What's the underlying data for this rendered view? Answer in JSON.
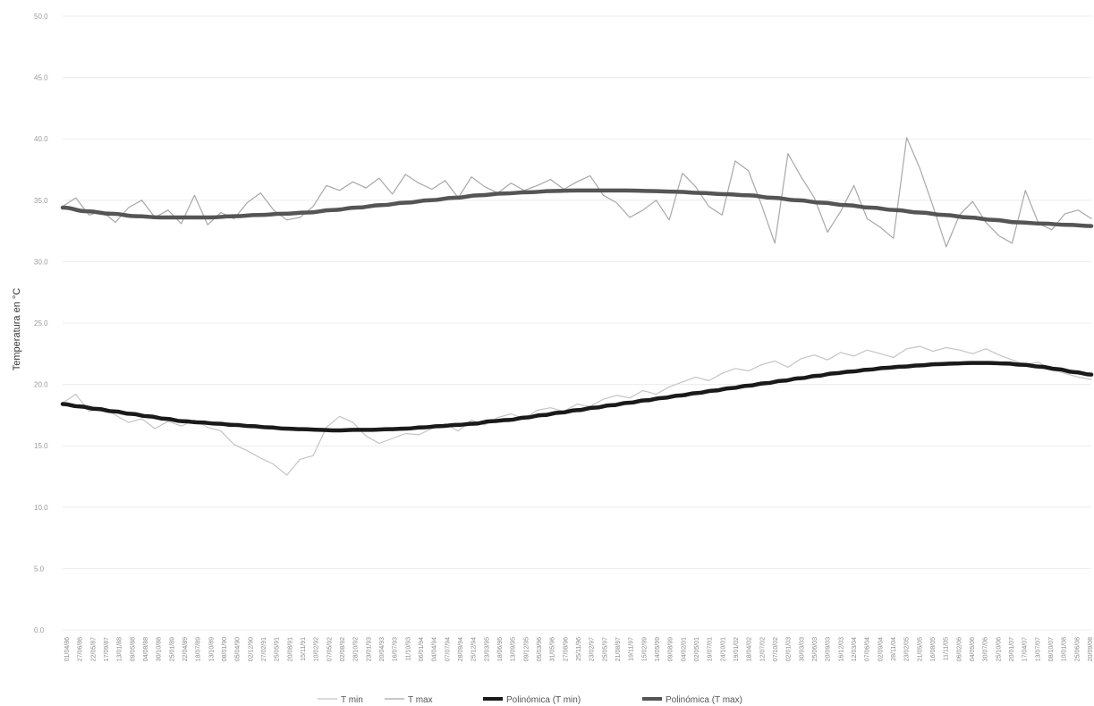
{
  "chart_data": {
    "type": "line",
    "title": "",
    "xlabel": "",
    "ylabel": "Temperatura en °C",
    "ylim": [
      0,
      50
    ],
    "yticks": [
      "0.0",
      "5.0",
      "10.0",
      "15.0",
      "20.0",
      "25.0",
      "30.0",
      "35.0",
      "40.0",
      "45.0",
      "50.0"
    ],
    "grid": true,
    "legend_position": "bottom",
    "x_tick_labels": [
      "01/04/86",
      "27/06/86",
      "22/05/87",
      "17/09/87",
      "13/01/88",
      "09/05/88",
      "04/08/88",
      "30/10/88",
      "25/01/89",
      "22/04/89",
      "18/07/89",
      "13/10/89",
      "08/01/90",
      "05/04/90",
      "02/12/90",
      "27/02/91",
      "25/05/91",
      "20/08/91",
      "15/11/91",
      "10/02/92",
      "07/05/92",
      "02/08/92",
      "28/10/92",
      "23/01/93",
      "20/04/93",
      "16/07/93",
      "11/10/93",
      "06/01/94",
      "04/04/94",
      "07/07/94",
      "28/09/94",
      "25/12/94",
      "23/03/95",
      "18/06/95",
      "13/09/95",
      "09/12/95",
      "05/03/96",
      "31/05/96",
      "27/08/96",
      "25/11/96",
      "23/02/97",
      "25/05/97",
      "21/08/97",
      "19/11/97",
      "15/02/99",
      "14/05/99",
      "09/08/99",
      "04/02/01",
      "02/05/01",
      "19/07/01",
      "24/10/01",
      "19/01/02",
      "18/04/02",
      "12/07/02",
      "07/10/02",
      "02/01/03",
      "30/03/03",
      "25/06/03",
      "20/09/03",
      "16/12/03",
      "12/03/04",
      "07/06/04",
      "02/09/04",
      "28/11/04",
      "23/02/05",
      "21/05/05",
      "16/08/05",
      "11/11/05",
      "06/02/06",
      "04/05/06",
      "30/07/06",
      "25/10/06",
      "20/01/07",
      "17/04/07",
      "13/07/07",
      "08/10/07",
      "10/01/08",
      "25/06/08",
      "20/09/08"
    ],
    "series": [
      {
        "name": "T min",
        "style": "thin-line",
        "color": "#c4c4c4",
        "values": [
          18.5,
          19.2,
          17.8,
          18.1,
          17.5,
          16.9,
          17.2,
          16.4,
          17.0,
          16.6,
          17.1,
          16.5,
          16.2,
          15.1,
          14.6,
          14.0,
          13.5,
          12.6,
          13.9,
          14.2,
          16.5,
          17.4,
          16.9,
          15.8,
          15.2,
          15.6,
          16.0,
          15.9,
          16.4,
          16.8,
          16.2,
          17.1,
          16.7,
          17.3,
          17.6,
          17.2,
          17.9,
          18.1,
          17.8,
          18.4,
          18.2,
          18.8,
          19.1,
          18.9,
          19.5,
          19.2,
          19.8,
          20.2,
          20.6,
          20.3,
          20.9,
          21.3,
          21.1,
          21.6,
          21.9,
          21.4,
          22.1,
          22.4,
          22.0,
          22.6,
          22.3,
          22.8,
          22.5,
          22.2,
          22.9,
          23.1,
          22.7,
          23.0,
          22.8,
          22.5,
          22.9,
          22.4,
          22.0,
          21.6,
          21.8,
          21.2,
          20.9,
          20.6,
          20.4
        ]
      },
      {
        "name": "T max",
        "style": "thin-line",
        "color": "#a8a8a8",
        "values": [
          34.5,
          35.2,
          33.8,
          34.1,
          33.2,
          34.4,
          35.0,
          33.6,
          34.2,
          33.1,
          35.4,
          33.0,
          34.0,
          33.5,
          34.8,
          35.6,
          34.2,
          33.4,
          33.6,
          34.5,
          36.2,
          35.8,
          36.5,
          36.0,
          36.8,
          35.5,
          37.1,
          36.4,
          35.9,
          36.6,
          35.2,
          36.9,
          36.1,
          35.6,
          36.4,
          35.8,
          36.2,
          36.7,
          35.9,
          36.5,
          37.0,
          35.4,
          34.8,
          33.6,
          34.2,
          35.0,
          33.4,
          37.2,
          36.1,
          34.5,
          33.8,
          38.2,
          37.4,
          34.6,
          31.5,
          38.8,
          36.9,
          35.2,
          32.4,
          34.1,
          36.2,
          33.5,
          32.8,
          31.9,
          40.1,
          37.6,
          34.5,
          31.2,
          33.8,
          34.9,
          33.2,
          32.1,
          31.5,
          35.8,
          33.1,
          32.6,
          33.9,
          34.2,
          33.5
        ]
      },
      {
        "name": "Polinómica (T min)",
        "style": "trendline",
        "color": "#1a1a1a",
        "values": [
          18.4,
          18.2,
          18.0,
          17.8,
          17.6,
          17.4,
          17.2,
          17.0,
          16.9,
          16.8,
          16.7,
          16.6,
          16.5,
          16.4,
          16.35,
          16.3,
          16.25,
          16.3,
          16.3,
          16.35,
          16.4,
          16.5,
          16.6,
          16.7,
          16.8,
          17.0,
          17.1,
          17.3,
          17.5,
          17.7,
          17.9,
          18.1,
          18.3,
          18.5,
          18.7,
          18.9,
          19.1,
          19.3,
          19.5,
          19.7,
          19.9,
          20.1,
          20.3,
          20.5,
          20.7,
          20.9,
          21.05,
          21.2,
          21.35,
          21.45,
          21.55,
          21.65,
          21.7,
          21.75,
          21.75,
          21.7,
          21.6,
          21.45,
          21.25,
          21.0,
          20.8
        ]
      },
      {
        "name": "Polinómica (T max)",
        "style": "trendline",
        "color": "#555555",
        "values": [
          34.4,
          34.1,
          33.9,
          33.7,
          33.6,
          33.6,
          33.6,
          33.7,
          33.8,
          33.9,
          34.0,
          34.2,
          34.4,
          34.6,
          34.8,
          35.0,
          35.2,
          35.4,
          35.55,
          35.65,
          35.75,
          35.8,
          35.8,
          35.8,
          35.75,
          35.7,
          35.6,
          35.5,
          35.4,
          35.2,
          35.0,
          34.8,
          34.6,
          34.4,
          34.2,
          34.0,
          33.8,
          33.6,
          33.4,
          33.2,
          33.1,
          33.0,
          32.9
        ]
      }
    ]
  }
}
